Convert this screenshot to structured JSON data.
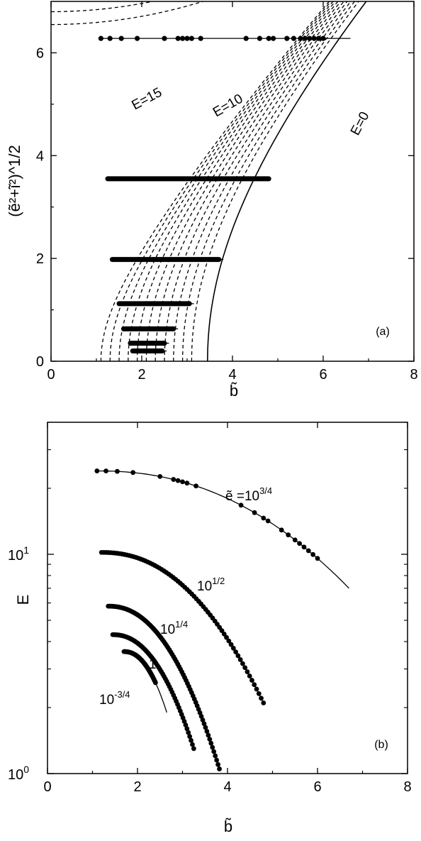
{
  "figure": {
    "panel_a": {
      "tag": "(a)",
      "xlabel": "b̃",
      "ylabel": "(ẽ²+ĩ²)^1/2",
      "xticks": [
        "0",
        "2",
        "4",
        "6",
        "8"
      ],
      "yticks": [
        "0",
        "2",
        "4",
        "6"
      ],
      "labels": [
        "E=15",
        "E=10",
        "E=0"
      ]
    },
    "panel_b": {
      "tag": "(b)",
      "xlabel": "b̃",
      "ylabel": "E",
      "xticks": [
        "0",
        "2",
        "4",
        "6",
        "8"
      ],
      "yticks": [
        "10",
        "10"
      ],
      "ytick_exponents": [
        "1",
        "0"
      ],
      "series_labels": [
        {
          "base": "ẽ =10",
          "exp": "3/4"
        },
        {
          "base": "10",
          "exp": "1/2"
        },
        {
          "base": "10",
          "exp": "1/4"
        },
        {
          "base": "1",
          "exp": ""
        },
        {
          "base": "10",
          "exp": "-3/4"
        }
      ]
    }
  },
  "chart_data": [
    {
      "type": "line",
      "title": "",
      "xlabel": "b̃",
      "ylabel": "(ẽ²+ĩ²)^1/2",
      "xlim": [
        0,
        8
      ],
      "ylim": [
        0,
        7
      ],
      "level_curves": {
        "style": "dashed",
        "description_values": "constant-E contours",
        "labeled": [
          "E=15",
          "E=10"
        ],
        "b_at_zero": [
          1.1,
          1.3,
          1.5,
          1.7,
          1.9,
          2.1,
          2.3,
          2.5,
          2.7,
          2.9,
          3.1
        ]
      },
      "boundary_curve": {
        "label": "E=0",
        "style": "solid",
        "b_at_zero": 3.45
      },
      "series": [
        {
          "y": 6.28,
          "x_start": 1.1,
          "x_end": 6.6,
          "points": [
            1.1,
            1.3,
            1.55,
            1.9,
            2.5,
            2.8,
            2.9,
            3.0,
            3.1,
            3.3,
            4.3,
            4.6,
            4.8,
            4.9,
            5.2,
            5.35,
            5.5,
            5.6,
            5.7,
            5.8,
            5.9,
            6.0
          ]
        },
        {
          "y": 3.55,
          "x_start": 1.25,
          "x_end": 4.8
        },
        {
          "y": 1.98,
          "x_start": 1.35,
          "x_end": 3.8
        },
        {
          "y": 1.12,
          "x_start": 1.5,
          "x_end": 3.15
        },
        {
          "y": 0.63,
          "x_start": 1.6,
          "x_end": 2.8
        },
        {
          "y": 0.35,
          "x_start": 1.75,
          "x_end": 2.6
        },
        {
          "y": 0.2,
          "x_start": 1.8,
          "x_end": 2.55
        }
      ]
    },
    {
      "type": "line",
      "title": "",
      "xlabel": "b̃",
      "ylabel": "E",
      "xlim": [
        0,
        8
      ],
      "ylim": [
        1,
        40
      ],
      "yscale": "log",
      "series": [
        {
          "name": "ẽ =10^3/4",
          "x_start": 1.1,
          "x_end": 6.7,
          "E_start": 24,
          "E_end": 7.0,
          "points": [
            1.1,
            1.3,
            1.55,
            1.9,
            2.5,
            2.8,
            2.9,
            3.0,
            3.1,
            3.3,
            4.3,
            4.6,
            4.8,
            4.9,
            5.2,
            5.35,
            5.5,
            5.6,
            5.7,
            5.8,
            5.9,
            6.0
          ]
        },
        {
          "name": "10^1/2",
          "x_start": 1.2,
          "x_end": 4.8,
          "E_start": 10.2,
          "E_end": 2.1
        },
        {
          "name": "10^1/4",
          "x_start": 1.35,
          "x_end": 3.82,
          "E_start": 5.8,
          "E_end": 1.05
        },
        {
          "name": "1",
          "x_start": 1.45,
          "x_end": 3.25,
          "E_start": 4.3,
          "E_end": 1.3
        },
        {
          "name": "10^-3/4",
          "x_start": 1.7,
          "x_end": 2.65,
          "E_start": 3.6,
          "E_end": 1.9
        }
      ]
    }
  ]
}
